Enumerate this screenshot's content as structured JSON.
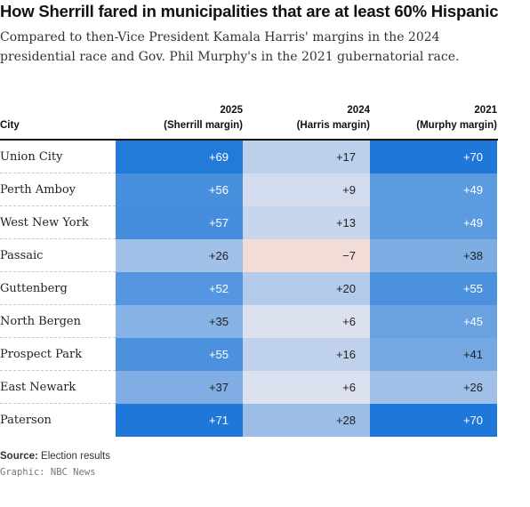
{
  "header": {
    "title": "How Sherrill fared in municipalities that are at least 60% Hispanic",
    "subtitle": "Compared to then-Vice President Kamala Harris' margins in the 2024 presidential race and Gov. Phil Murphy's in the 2021 gubernatorial race."
  },
  "footer": {
    "source_label": "Source:",
    "source_text": " Election results",
    "credit": "Graphic: NBC News"
  },
  "chart_data": {
    "type": "table",
    "columns": [
      {
        "key": "city",
        "year": "",
        "label": "City"
      },
      {
        "key": "sherrill",
        "year": "2025",
        "label": "(Sherrill margin)"
      },
      {
        "key": "harris",
        "year": "2024",
        "label": "(Harris margin)"
      },
      {
        "key": "murphy",
        "year": "2021",
        "label": "(Murphy margin)"
      }
    ],
    "rows": [
      {
        "city": "Union City",
        "display": [
          "+69",
          "+17",
          "+70"
        ],
        "values": [
          69,
          17,
          70
        ]
      },
      {
        "city": "Perth Amboy",
        "display": [
          "+56",
          "+9",
          "+49"
        ],
        "values": [
          56,
          9,
          49
        ]
      },
      {
        "city": "West New York",
        "display": [
          "+57",
          "+13",
          "+49"
        ],
        "values": [
          57,
          13,
          49
        ]
      },
      {
        "city": "Passaic",
        "display": [
          "+26",
          "−7",
          "+38"
        ],
        "values": [
          26,
          -7,
          38
        ]
      },
      {
        "city": "Guttenberg",
        "display": [
          "+52",
          "+20",
          "+55"
        ],
        "values": [
          52,
          20,
          55
        ]
      },
      {
        "city": "North Bergen",
        "display": [
          "+35",
          "+6",
          "+45"
        ],
        "values": [
          35,
          6,
          45
        ]
      },
      {
        "city": "Prospect Park",
        "display": [
          "+55",
          "+16",
          "+41"
        ],
        "values": [
          55,
          16,
          41
        ]
      },
      {
        "city": "East Newark",
        "display": [
          "+37",
          "+6",
          "+26"
        ],
        "values": [
          37,
          6,
          26
        ]
      },
      {
        "city": "Paterson",
        "display": [
          "+71",
          "+28",
          "+70"
        ],
        "values": [
          71,
          28,
          70
        ]
      }
    ],
    "colors": {
      "dem_strong": "#1f78d9",
      "dem_light": "#dfe3ef",
      "rep_light": "#f2dcd8"
    }
  }
}
